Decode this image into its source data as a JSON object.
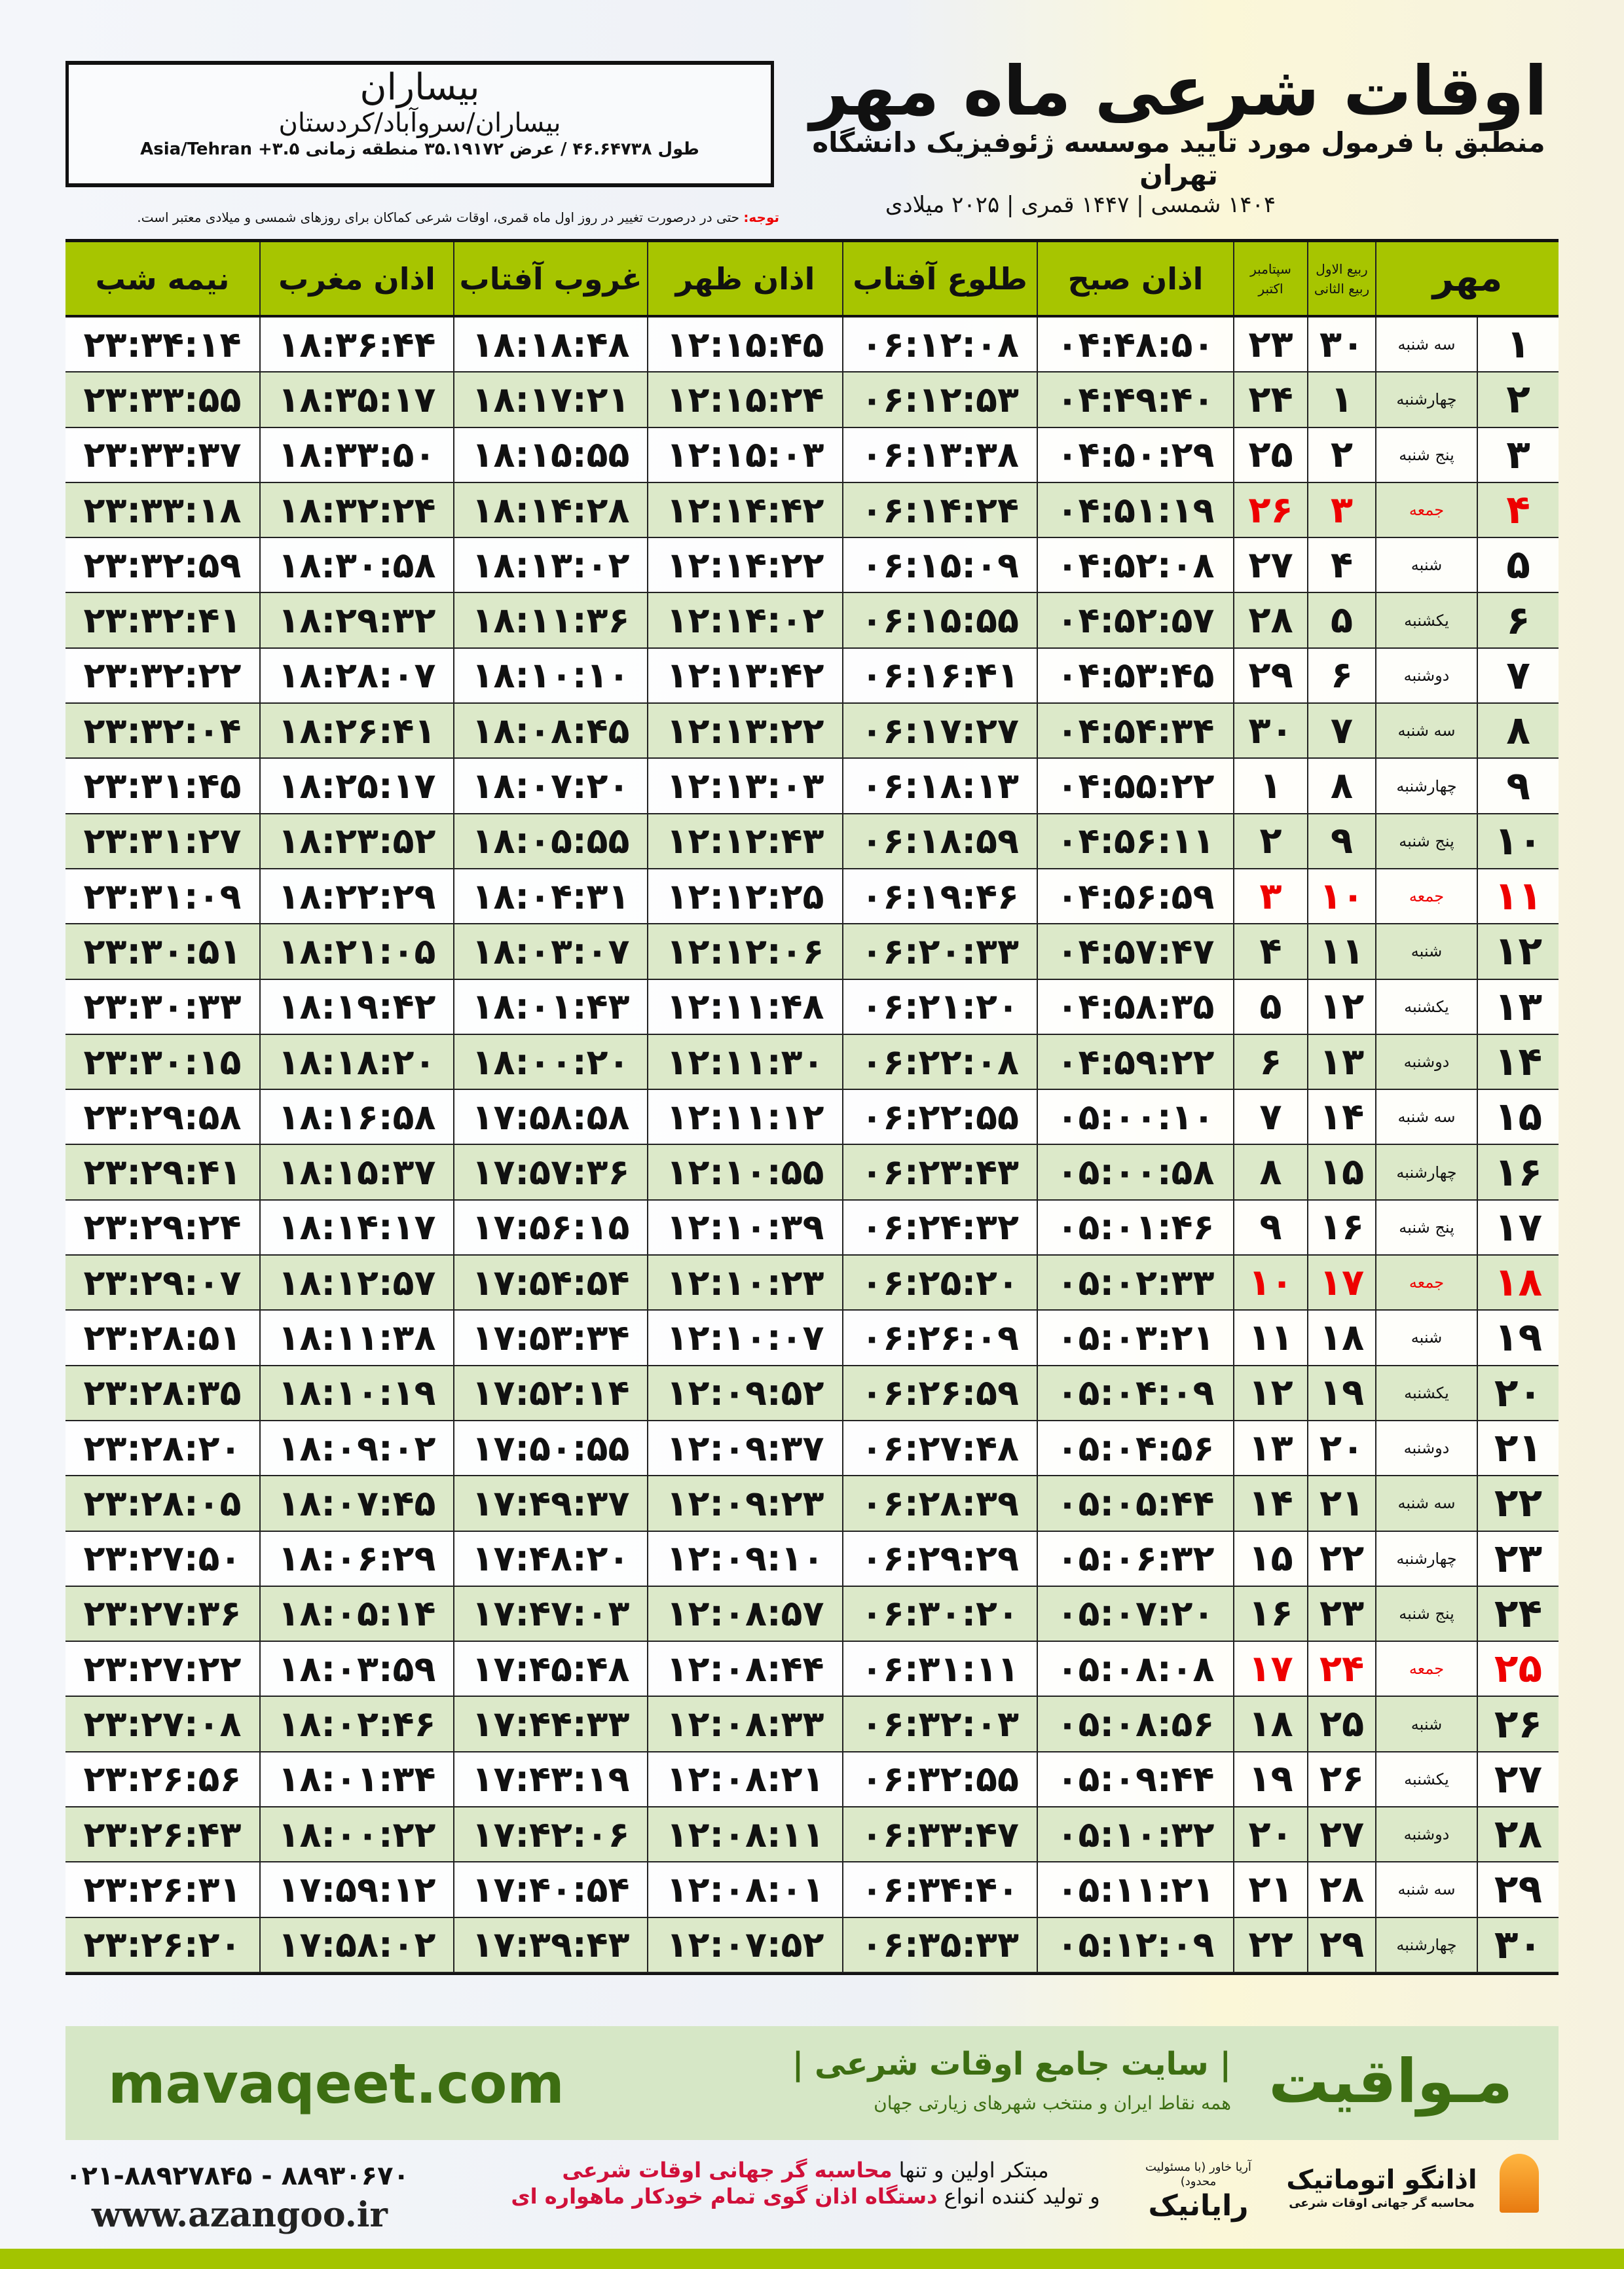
{
  "header": {
    "title": "اوقات شرعی ماه مهر",
    "subtitle": "منطبق با فرمول مورد تایید موسسه ژئوفیزیک دانشگاه تهران",
    "dateline": "۱۴۰۴ شمسی | ۱۴۴۷ قمری | ۲۰۲۵ میلادی"
  },
  "location": {
    "city": "بیساران",
    "path": "بیساران/سروآباد/کردستان",
    "geo": "طول ۴۶.۶۴۷۳۸ / عرض ۳۵.۱۹۱۷۲ منطقه زمانی ۳.۵+ Asia/Tehran"
  },
  "note": {
    "label": "توجه:",
    "text": " حتی در درصورت تغییر در روز اول ماه قمری، اوقات شرعی کماکان برای روزهای شمسی و میلادی معتبر است."
  },
  "table": {
    "headers": {
      "month": "مهر",
      "hijri": [
        "ربیع الاول",
        "ربیع الثانی"
      ],
      "greg": [
        "سپتامبر",
        "اکتبر"
      ],
      "fajr": "اذان صبح",
      "sunrise": "طلوع آفتاب",
      "dhuhr": "اذان ظهر",
      "sunset": "غروب آفتاب",
      "maghrib": "اذان مغرب",
      "midnight": "نیمه شب"
    },
    "holiday_color": "#e00000",
    "rows": [
      [
        "۱",
        "سه شنبه",
        "۳۰",
        "۲۳",
        "۰۴:۴۸:۵۰",
        "۰۶:۱۲:۰۸",
        "۱۲:۱۵:۴۵",
        "۱۸:۱۸:۴۸",
        "۱۸:۳۶:۴۴",
        "۲۳:۳۴:۱۴"
      ],
      [
        "۲",
        "چهارشنبه",
        "۱",
        "۲۴",
        "۰۴:۴۹:۴۰",
        "۰۶:۱۲:۵۳",
        "۱۲:۱۵:۲۴",
        "۱۸:۱۷:۲۱",
        "۱۸:۳۵:۱۷",
        "۲۳:۳۳:۵۵"
      ],
      [
        "۳",
        "پنج شنبه",
        "۲",
        "۲۵",
        "۰۴:۵۰:۲۹",
        "۰۶:۱۳:۳۸",
        "۱۲:۱۵:۰۳",
        "۱۸:۱۵:۵۵",
        "۱۸:۳۳:۵۰",
        "۲۳:۳۳:۳۷"
      ],
      [
        "۴",
        "جمعه",
        "۳",
        "۲۶",
        "۰۴:۵۱:۱۹",
        "۰۶:۱۴:۲۴",
        "۱۲:۱۴:۴۲",
        "۱۸:۱۴:۲۸",
        "۱۸:۳۲:۲۴",
        "۲۳:۳۳:۱۸"
      ],
      [
        "۵",
        "شنبه",
        "۴",
        "۲۷",
        "۰۴:۵۲:۰۸",
        "۰۶:۱۵:۰۹",
        "۱۲:۱۴:۲۲",
        "۱۸:۱۳:۰۲",
        "۱۸:۳۰:۵۸",
        "۲۳:۳۲:۵۹"
      ],
      [
        "۶",
        "یکشنبه",
        "۵",
        "۲۸",
        "۰۴:۵۲:۵۷",
        "۰۶:۱۵:۵۵",
        "۱۲:۱۴:۰۲",
        "۱۸:۱۱:۳۶",
        "۱۸:۲۹:۳۲",
        "۲۳:۳۲:۴۱"
      ],
      [
        "۷",
        "دوشنبه",
        "۶",
        "۲۹",
        "۰۴:۵۳:۴۵",
        "۰۶:۱۶:۴۱",
        "۱۲:۱۳:۴۲",
        "۱۸:۱۰:۱۰",
        "۱۸:۲۸:۰۷",
        "۲۳:۳۲:۲۲"
      ],
      [
        "۸",
        "سه شنبه",
        "۷",
        "۳۰",
        "۰۴:۵۴:۳۴",
        "۰۶:۱۷:۲۷",
        "۱۲:۱۳:۲۲",
        "۱۸:۰۸:۴۵",
        "۱۸:۲۶:۴۱",
        "۲۳:۳۲:۰۴"
      ],
      [
        "۹",
        "چهارشنبه",
        "۸",
        "۱",
        "۰۴:۵۵:۲۲",
        "۰۶:۱۸:۱۳",
        "۱۲:۱۳:۰۳",
        "۱۸:۰۷:۲۰",
        "۱۸:۲۵:۱۷",
        "۲۳:۳۱:۴۵"
      ],
      [
        "۱۰",
        "پنج شنبه",
        "۹",
        "۲",
        "۰۴:۵۶:۱۱",
        "۰۶:۱۸:۵۹",
        "۱۲:۱۲:۴۳",
        "۱۸:۰۵:۵۵",
        "۱۸:۲۳:۵۲",
        "۲۳:۳۱:۲۷"
      ],
      [
        "۱۱",
        "جمعه",
        "۱۰",
        "۳",
        "۰۴:۵۶:۵۹",
        "۰۶:۱۹:۴۶",
        "۱۲:۱۲:۲۵",
        "۱۸:۰۴:۳۱",
        "۱۸:۲۲:۲۹",
        "۲۳:۳۱:۰۹"
      ],
      [
        "۱۲",
        "شنبه",
        "۱۱",
        "۴",
        "۰۴:۵۷:۴۷",
        "۰۶:۲۰:۳۳",
        "۱۲:۱۲:۰۶",
        "۱۸:۰۳:۰۷",
        "۱۸:۲۱:۰۵",
        "۲۳:۳۰:۵۱"
      ],
      [
        "۱۳",
        "یکشنبه",
        "۱۲",
        "۵",
        "۰۴:۵۸:۳۵",
        "۰۶:۲۱:۲۰",
        "۱۲:۱۱:۴۸",
        "۱۸:۰۱:۴۳",
        "۱۸:۱۹:۴۲",
        "۲۳:۳۰:۳۳"
      ],
      [
        "۱۴",
        "دوشنبه",
        "۱۳",
        "۶",
        "۰۴:۵۹:۲۲",
        "۰۶:۲۲:۰۸",
        "۱۲:۱۱:۳۰",
        "۱۸:۰۰:۲۰",
        "۱۸:۱۸:۲۰",
        "۲۳:۳۰:۱۵"
      ],
      [
        "۱۵",
        "سه شنبه",
        "۱۴",
        "۷",
        "۰۵:۰۰:۱۰",
        "۰۶:۲۲:۵۵",
        "۱۲:۱۱:۱۲",
        "۱۷:۵۸:۵۸",
        "۱۸:۱۶:۵۸",
        "۲۳:۲۹:۵۸"
      ],
      [
        "۱۶",
        "چهارشنبه",
        "۱۵",
        "۸",
        "۰۵:۰۰:۵۸",
        "۰۶:۲۳:۴۳",
        "۱۲:۱۰:۵۵",
        "۱۷:۵۷:۳۶",
        "۱۸:۱۵:۳۷",
        "۲۳:۲۹:۴۱"
      ],
      [
        "۱۷",
        "پنج شنبه",
        "۱۶",
        "۹",
        "۰۵:۰۱:۴۶",
        "۰۶:۲۴:۳۲",
        "۱۲:۱۰:۳۹",
        "۱۷:۵۶:۱۵",
        "۱۸:۱۴:۱۷",
        "۲۳:۲۹:۲۴"
      ],
      [
        "۱۸",
        "جمعه",
        "۱۷",
        "۱۰",
        "۰۵:۰۲:۳۳",
        "۰۶:۲۵:۲۰",
        "۱۲:۱۰:۲۳",
        "۱۷:۵۴:۵۴",
        "۱۸:۱۲:۵۷",
        "۲۳:۲۹:۰۷"
      ],
      [
        "۱۹",
        "شنبه",
        "۱۸",
        "۱۱",
        "۰۵:۰۳:۲۱",
        "۰۶:۲۶:۰۹",
        "۱۲:۱۰:۰۷",
        "۱۷:۵۳:۳۴",
        "۱۸:۱۱:۳۸",
        "۲۳:۲۸:۵۱"
      ],
      [
        "۲۰",
        "یکشنبه",
        "۱۹",
        "۱۲",
        "۰۵:۰۴:۰۹",
        "۰۶:۲۶:۵۹",
        "۱۲:۰۹:۵۲",
        "۱۷:۵۲:۱۴",
        "۱۸:۱۰:۱۹",
        "۲۳:۲۸:۳۵"
      ],
      [
        "۲۱",
        "دوشنبه",
        "۲۰",
        "۱۳",
        "۰۵:۰۴:۵۶",
        "۰۶:۲۷:۴۸",
        "۱۲:۰۹:۳۷",
        "۱۷:۵۰:۵۵",
        "۱۸:۰۹:۰۲",
        "۲۳:۲۸:۲۰"
      ],
      [
        "۲۲",
        "سه شنبه",
        "۲۱",
        "۱۴",
        "۰۵:۰۵:۴۴",
        "۰۶:۲۸:۳۹",
        "۱۲:۰۹:۲۳",
        "۱۷:۴۹:۳۷",
        "۱۸:۰۷:۴۵",
        "۲۳:۲۸:۰۵"
      ],
      [
        "۲۳",
        "چهارشنبه",
        "۲۲",
        "۱۵",
        "۰۵:۰۶:۳۲",
        "۰۶:۲۹:۲۹",
        "۱۲:۰۹:۱۰",
        "۱۷:۴۸:۲۰",
        "۱۸:۰۶:۲۹",
        "۲۳:۲۷:۵۰"
      ],
      [
        "۲۴",
        "پنج شنبه",
        "۲۳",
        "۱۶",
        "۰۵:۰۷:۲۰",
        "۰۶:۳۰:۲۰",
        "۱۲:۰۸:۵۷",
        "۱۷:۴۷:۰۳",
        "۱۸:۰۵:۱۴",
        "۲۳:۲۷:۳۶"
      ],
      [
        "۲۵",
        "جمعه",
        "۲۴",
        "۱۷",
        "۰۵:۰۸:۰۸",
        "۰۶:۳۱:۱۱",
        "۱۲:۰۸:۴۴",
        "۱۷:۴۵:۴۸",
        "۱۸:۰۳:۵۹",
        "۲۳:۲۷:۲۲"
      ],
      [
        "۲۶",
        "شنبه",
        "۲۵",
        "۱۸",
        "۰۵:۰۸:۵۶",
        "۰۶:۳۲:۰۳",
        "۱۲:۰۸:۳۳",
        "۱۷:۴۴:۳۳",
        "۱۸:۰۲:۴۶",
        "۲۳:۲۷:۰۸"
      ],
      [
        "۲۷",
        "یکشنبه",
        "۲۶",
        "۱۹",
        "۰۵:۰۹:۴۴",
        "۰۶:۳۲:۵۵",
        "۱۲:۰۸:۲۱",
        "۱۷:۴۳:۱۹",
        "۱۸:۰۱:۳۴",
        "۲۳:۲۶:۵۶"
      ],
      [
        "۲۸",
        "دوشنبه",
        "۲۷",
        "۲۰",
        "۰۵:۱۰:۳۲",
        "۰۶:۳۳:۴۷",
        "۱۲:۰۸:۱۱",
        "۱۷:۴۲:۰۶",
        "۱۸:۰۰:۲۲",
        "۲۳:۲۶:۴۳"
      ],
      [
        "۲۹",
        "سه شنبه",
        "۲۸",
        "۲۱",
        "۰۵:۱۱:۲۱",
        "۰۶:۳۴:۴۰",
        "۱۲:۰۸:۰۱",
        "۱۷:۴۰:۵۴",
        "۱۷:۵۹:۱۲",
        "۲۳:۲۶:۳۱"
      ],
      [
        "۳۰",
        "چهارشنبه",
        "۲۹",
        "۲۲",
        "۰۵:۱۲:۰۹",
        "۰۶:۳۵:۳۳",
        "۱۲:۰۷:۵۲",
        "۱۷:۳۹:۴۳",
        "۱۷:۵۸:۰۲",
        "۲۳:۲۶:۲۰"
      ]
    ]
  },
  "footer": {
    "brand": "مـواقیت",
    "slogan": "| سایت جامع اوقات شرعی |",
    "slogan2": "همه نقاط ایران و منتخب شهرهای زیارتی جهان",
    "site": "mavaqeet.com",
    "phone": "۰۲۱-۸۸۹۲۷۸۴۵ - ۸۸۹۳۰۶۷۰",
    "www": "www.azangoo.ir",
    "ad_line1_a": "مبتکر اولین و تنها ",
    "ad_line1_b": "محاسبه گر جهانی اوقات شرعی",
    "ad_line2_a": "و تولید کننده انواع ",
    "ad_line2_b": "دستگاه اذان گوی تمام خودکار ماهواره ای",
    "logo_rayanik": "رایانیک",
    "logo_rayanik_sub": "آریا خاور (با مسئولیت محدود)",
    "logo_azangoo": "اذانگو اتوماتیک",
    "logo_azangoo_sub": "محاسبه گر جهانی اوقات شرعی",
    "logo_azangoo_en": "azangoo"
  },
  "colors": {
    "header_green": "#a7c500",
    "row_green": "#dce9c9",
    "brand_green": "#3d6e12",
    "accent_red": "#e00000"
  }
}
